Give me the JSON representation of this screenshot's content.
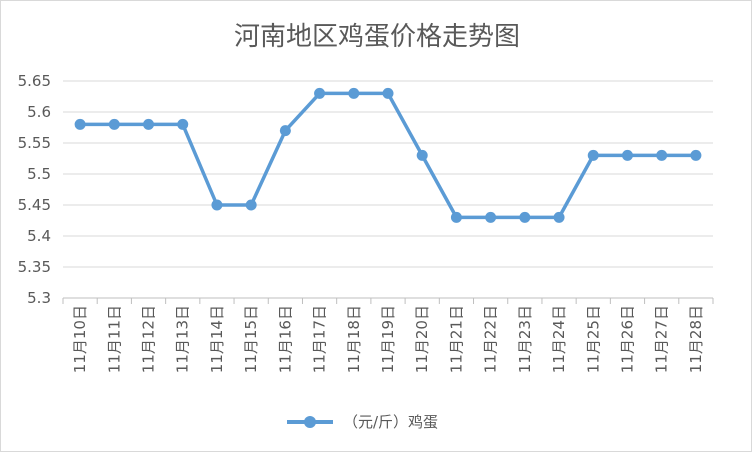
{
  "chart_data": {
    "type": "line",
    "title": "河南地区鸡蛋价格走势图",
    "xlabel": "",
    "ylabel": "",
    "categories": [
      "11月10日",
      "11月11日",
      "11月12日",
      "11月13日",
      "11月14日",
      "11月15日",
      "11月16日",
      "11月17日",
      "11月18日",
      "11月19日",
      "11月20日",
      "11月21日",
      "11月22日",
      "11月23日",
      "11月24日",
      "11月25日",
      "11月26日",
      "11月27日",
      "11月28日"
    ],
    "series": [
      {
        "name": "（元/斤）鸡蛋",
        "color": "#5b9bd5",
        "values": [
          5.58,
          5.58,
          5.58,
          5.58,
          5.45,
          5.45,
          5.57,
          5.63,
          5.63,
          5.63,
          5.53,
          5.43,
          5.43,
          5.43,
          5.43,
          5.53,
          5.53,
          5.53,
          5.53
        ]
      }
    ],
    "ylim": [
      5.3,
      5.65
    ],
    "yticks": [
      "5.3",
      "5.35",
      "5.4",
      "5.45",
      "5.5",
      "5.55",
      "5.6",
      "5.65"
    ],
    "grid": true,
    "legend": "bottom"
  }
}
